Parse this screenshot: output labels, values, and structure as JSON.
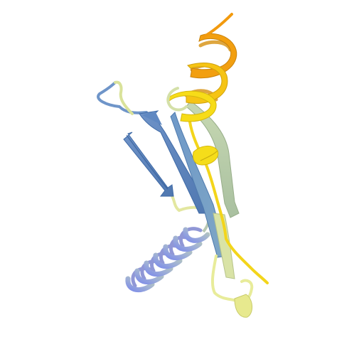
{
  "image": {
    "subject": "protein-ribbon-structure",
    "background": "#ffffff",
    "colors": {
      "helix_blue": "#8a96e6",
      "helix_teal": "#a9c6c0",
      "strand_blue": "#5a86c0",
      "strand_steel": "#86acc8",
      "strand_sage": "#bccfa6",
      "coil_pale": "#e6eb93",
      "yellow": "#f6de18",
      "orange": "#f3a20f"
    }
  }
}
